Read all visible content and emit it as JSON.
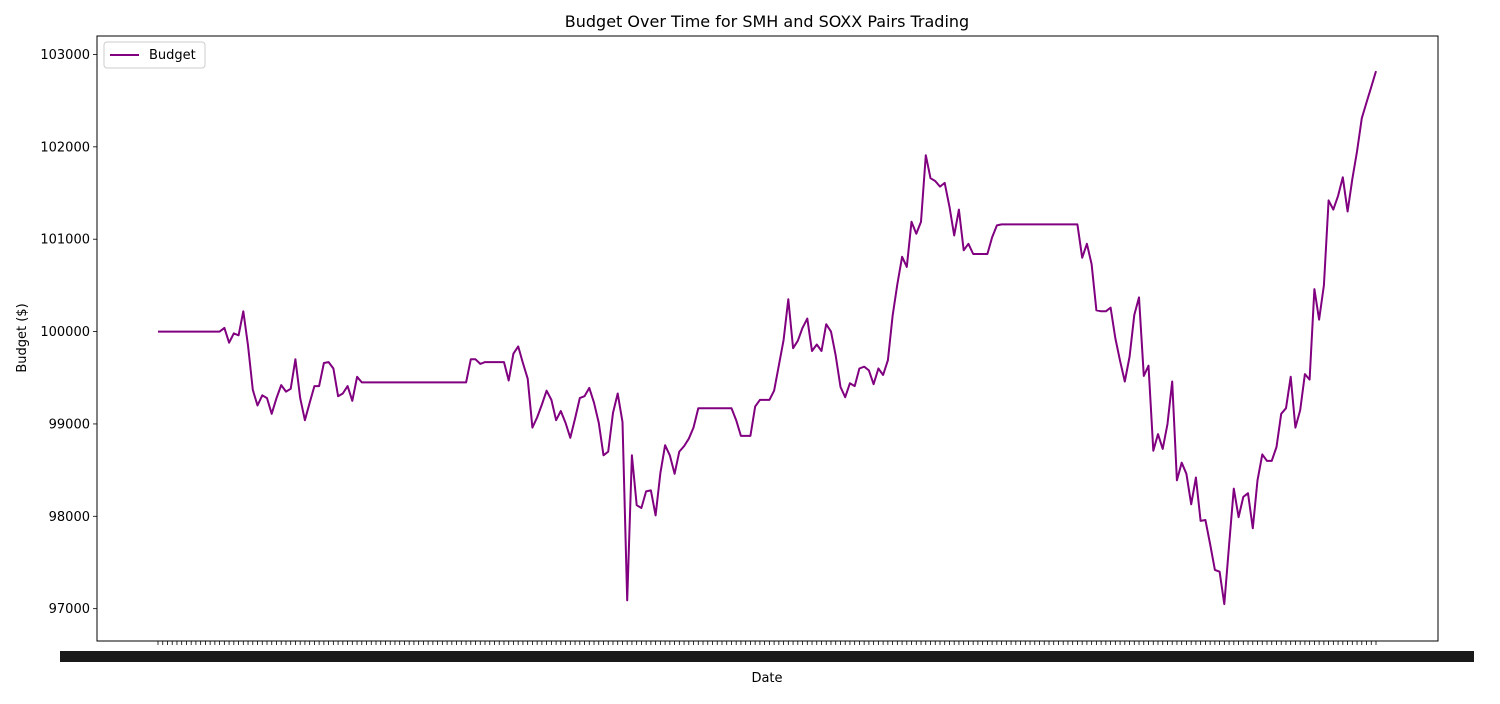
{
  "chart_data": {
    "type": "line",
    "title": "Budget Over Time for SMH and SOXX Pairs Trading",
    "xlabel": "Date",
    "ylabel": "Budget ($)",
    "ylim": [
      96650,
      103200
    ],
    "yticks": [
      97000,
      98000,
      99000,
      100000,
      101000,
      102000,
      103000
    ],
    "xtick_labels_note": "dense, overlapping date labels (unreadable)",
    "legend_position": "upper-left",
    "grid": false,
    "series": [
      {
        "name": "Budget",
        "color": "#800080",
        "values": [
          100000,
          100000,
          100000,
          100000,
          100000,
          100000,
          100000,
          100000,
          100000,
          100000,
          100000,
          100000,
          100000,
          100000,
          100040,
          99880,
          99980,
          99960,
          100220,
          99850,
          99370,
          99200,
          99310,
          99280,
          99110,
          99280,
          99420,
          99350,
          99380,
          99700,
          99280,
          99040,
          99230,
          99410,
          99410,
          99660,
          99670,
          99600,
          99300,
          99330,
          99410,
          99250,
          99510,
          99450,
          99450,
          99450,
          99450,
          99450,
          99450,
          99450,
          99450,
          99450,
          99450,
          99450,
          99450,
          99450,
          99450,
          99450,
          99450,
          99450,
          99450,
          99450,
          99450,
          99450,
          99450,
          99450,
          99700,
          99700,
          99650,
          99670,
          99670,
          99670,
          99670,
          99670,
          99470,
          99760,
          99840,
          99660,
          99490,
          98960,
          99070,
          99210,
          99360,
          99260,
          99040,
          99140,
          99010,
          98850,
          99060,
          99280,
          99300,
          99390,
          99230,
          99010,
          98660,
          98700,
          99120,
          99330,
          99020,
          97090,
          98660,
          98120,
          98090,
          98270,
          98280,
          98010,
          98470,
          98770,
          98660,
          98460,
          98700,
          98760,
          98840,
          98960,
          99170,
          99170,
          99170,
          99170,
          99170,
          99170,
          99170,
          99170,
          99040,
          98870,
          98870,
          98870,
          99190,
          99260,
          99260,
          99260,
          99360,
          99630,
          99910,
          100350,
          99820,
          99900,
          100040,
          100140,
          99790,
          99860,
          99790,
          100080,
          100000,
          99740,
          99400,
          99290,
          99440,
          99410,
          99600,
          99620,
          99580,
          99430,
          99600,
          99530,
          99690,
          100170,
          100510,
          100810,
          100700,
          101190,
          101060,
          101190,
          101910,
          101660,
          101630,
          101570,
          101610,
          101350,
          101040,
          101320,
          100880,
          100950,
          100840,
          100840,
          100840,
          100840,
          101020,
          101150,
          101160,
          101160,
          101160,
          101160,
          101160,
          101160,
          101160,
          101160,
          101160,
          101160,
          101160,
          101160,
          101160,
          101160,
          101160,
          101160,
          101160,
          100800,
          100950,
          100730,
          100230,
          100220,
          100220,
          100260,
          99930,
          99680,
          99460,
          99730,
          100180,
          100370,
          99520,
          99630,
          98710,
          98890,
          98730,
          99000,
          99460,
          98390,
          98580,
          98460,
          98130,
          98420,
          97950,
          97960,
          97700,
          97420,
          97400,
          97050,
          97690,
          98300,
          97990,
          98210,
          98250,
          97870,
          98390,
          98670,
          98600,
          98600,
          98750,
          99110,
          99170,
          99510,
          98960,
          99150,
          99540,
          99480,
          100460,
          100130,
          100500,
          101420,
          101320,
          101470,
          101670,
          101300,
          101650,
          101950,
          102310,
          102480,
          102650,
          102820
        ]
      }
    ]
  }
}
